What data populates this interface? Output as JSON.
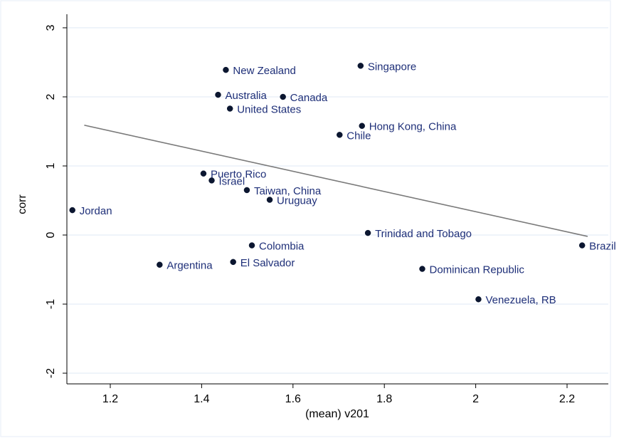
{
  "chart_data": {
    "type": "scatter",
    "title": "",
    "xlabel": "(mean) v201",
    "ylabel": "corr",
    "xlim": [
      1.11,
      2.25
    ],
    "ylim": [
      -2.2,
      3.2
    ],
    "xticks": [
      "1.2",
      "1.4",
      "1.6",
      "1.8",
      "2",
      "2.2"
    ],
    "yticks": [
      "-2",
      "-1",
      "0",
      "1",
      "2",
      "3"
    ],
    "grid": true,
    "points": [
      {
        "x": 1.117,
        "y": 0.36,
        "label": "Jordan"
      },
      {
        "x": 1.308,
        "y": -0.43,
        "label": "Argentina"
      },
      {
        "x": 1.404,
        "y": 0.89,
        "label": "Puerto Rico"
      },
      {
        "x": 1.422,
        "y": 0.79,
        "label": "Israel"
      },
      {
        "x": 1.436,
        "y": 2.03,
        "label": "Australia"
      },
      {
        "x": 1.453,
        "y": 2.39,
        "label": "New Zealand"
      },
      {
        "x": 1.462,
        "y": 1.83,
        "label": "United States"
      },
      {
        "x": 1.469,
        "y": -0.39,
        "label": "El Salvador"
      },
      {
        "x": 1.499,
        "y": 0.65,
        "label": "Taiwan, China"
      },
      {
        "x": 1.51,
        "y": -0.15,
        "label": "Colombia"
      },
      {
        "x": 1.549,
        "y": 0.51,
        "label": "Uruguay"
      },
      {
        "x": 1.578,
        "y": 2.0,
        "label": "Canada"
      },
      {
        "x": 1.702,
        "y": 1.45,
        "label": "Chile"
      },
      {
        "x": 1.748,
        "y": 2.45,
        "label": "Singapore"
      },
      {
        "x": 1.751,
        "y": 1.58,
        "label": "Hong Kong, China"
      },
      {
        "x": 1.764,
        "y": 0.03,
        "label": "Trinidad and Tobago"
      },
      {
        "x": 1.883,
        "y": -0.49,
        "label": "Dominican Republic"
      },
      {
        "x": 2.006,
        "y": -0.93,
        "label": "Venezuela, RB"
      },
      {
        "x": 2.233,
        "y": -0.15,
        "label": "Brazil"
      }
    ],
    "fit_line": {
      "x": [
        1.143,
        2.245
      ],
      "y": [
        1.59,
        -0.02
      ]
    }
  }
}
